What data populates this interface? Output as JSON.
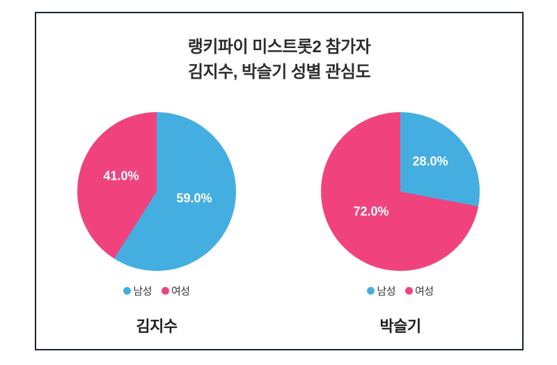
{
  "title": {
    "line1": "랭키파이 미스트롯2 참가자",
    "line2": "김지수, 박슬기 성별 관심도"
  },
  "colors": {
    "male": "#45AEE1",
    "female": "#F0437D",
    "frame_border": "#1a2230",
    "title_text": "#2d2d2d",
    "label_text": "#ffffff"
  },
  "chart_data": [
    {
      "type": "pie",
      "title": "김지수",
      "categories": [
        "남성",
        "여성"
      ],
      "values": [
        59.0,
        41.0
      ],
      "display_labels": [
        "59.0%",
        "41.0%"
      ],
      "colors": [
        "#45AEE1",
        "#F0437D"
      ],
      "start_angle_deg": 0,
      "direction": "clockwise",
      "legend_position": "bottom"
    },
    {
      "type": "pie",
      "title": "박슬기",
      "categories": [
        "남성",
        "여성"
      ],
      "values": [
        28.0,
        72.0
      ],
      "display_labels": [
        "28.0%",
        "72.0%"
      ],
      "colors": [
        "#45AEE1",
        "#F0437D"
      ],
      "start_angle_deg": 0,
      "direction": "clockwise",
      "legend_position": "bottom"
    }
  ]
}
